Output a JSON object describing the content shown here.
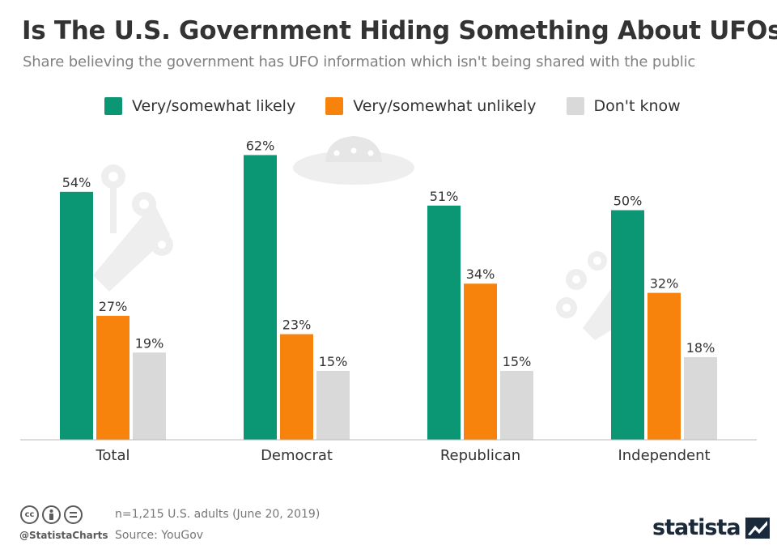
{
  "header": {
    "title": "Is The U.S. Government Hiding Something About UFOs?",
    "subtitle": "Share believing the government has UFO information which isn't being shared with the public"
  },
  "legend": {
    "items": [
      {
        "label": "Very/somewhat likely",
        "color": "#0b9674"
      },
      {
        "label": "Very/somewhat unlikely",
        "color": "#f7830d"
      },
      {
        "label": "Don't know",
        "color": "#d9d9d9"
      }
    ]
  },
  "chart_data": {
    "type": "bar",
    "categories": [
      "Total",
      "Democrat",
      "Republican",
      "Independent"
    ],
    "series": [
      {
        "name": "Very/somewhat likely",
        "values": [
          54,
          62,
          51,
          50
        ],
        "color": "#0b9674"
      },
      {
        "name": "Very/somewhat unlikely",
        "values": [
          27,
          23,
          34,
          32
        ],
        "color": "#f7830d"
      },
      {
        "name": "Don't know",
        "values": [
          19,
          15,
          15,
          18
        ],
        "color": "#d9d9d9"
      }
    ],
    "value_suffix": "%",
    "ylim": [
      0,
      62
    ],
    "grid": false,
    "legend_position": "top"
  },
  "footer": {
    "handle": "@StatistaCharts",
    "note": "n=1,215 U.S. adults (June 20, 2019)",
    "source": "Source: YouGov",
    "brand": "statista",
    "license_icons": [
      "cc-icon",
      "attribution-icon",
      "no-derivatives-icon"
    ]
  }
}
